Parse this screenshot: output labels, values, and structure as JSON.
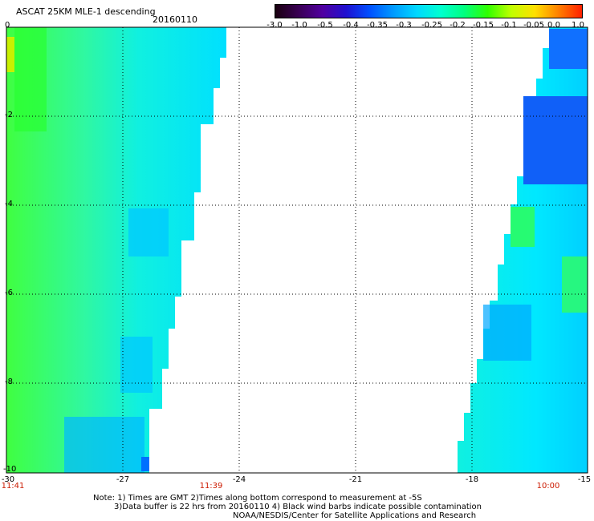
{
  "title": "ASCAT 25KM MLE-1 descending",
  "date": "20160110",
  "colorbar": {
    "tick_labels": [
      "-3.0",
      "-1.0",
      "-0.5",
      "-0.4",
      "-0.35",
      "-0.3",
      "-0.25",
      "-0.2",
      "-0.15",
      "-0.1",
      "-0.05",
      "0.0",
      "1.0"
    ],
    "colors": [
      "#1a0010",
      "#3a0055",
      "#5000a0",
      "#2010d0",
      "#0050ff",
      "#009aff",
      "#00d8ff",
      "#00ffd0",
      "#00ff80",
      "#30ff00",
      "#c0ff00",
      "#ffe000",
      "#ff8000",
      "#ff2000"
    ]
  },
  "axes": {
    "x_ticks": [
      "-30",
      "-27",
      "-24",
      "-21",
      "-18",
      "-15"
    ],
    "y_ticks": [
      "0",
      "-2",
      "-4",
      "-6",
      "-8",
      "-10"
    ],
    "grid": "dotted"
  },
  "time_labels": [
    "11:41",
    "11:39",
    "10:00"
  ],
  "notes": [
    "Note: 1) Times are GMT 2)Times along bottom correspond to measurement at -5S",
    "3)Data buffer is 22 hrs from 20160110 4) Black wind barbs indicate possible contamination",
    "NOAA/NESDIS/Center for Satellite Applications and Research"
  ]
}
